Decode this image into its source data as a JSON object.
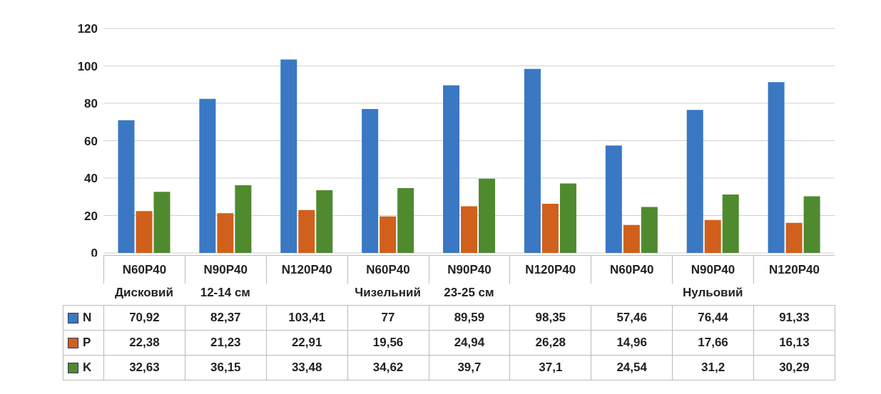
{
  "chart_data": {
    "type": "bar",
    "categories": [
      "N60P40",
      "N90P40",
      "N120P40",
      "N60P40",
      "N90P40",
      "N120P40",
      "N60P40",
      "N90P40",
      "N120P40"
    ],
    "series": [
      {
        "name": "N",
        "color": "#3a78c3",
        "values": [
          70.92,
          82.37,
          103.41,
          77,
          89.59,
          98.35,
          57.46,
          76.44,
          91.33
        ],
        "value_labels": [
          "70,92",
          "82,37",
          "103,41",
          "77",
          "89,59",
          "98,35",
          "57,46",
          "76,44",
          "91,33"
        ]
      },
      {
        "name": "P",
        "color": "#d0601c",
        "values": [
          22.38,
          21.23,
          22.91,
          19.56,
          24.94,
          26.28,
          14.96,
          17.66,
          16.13
        ],
        "value_labels": [
          "22,38",
          "21,23",
          "22,91",
          "19,56",
          "24,94",
          "26,28",
          "14,96",
          "17,66",
          "16,13"
        ]
      },
      {
        "name": "K",
        "color": "#4f8a2f",
        "values": [
          32.63,
          36.15,
          33.48,
          34.62,
          39.7,
          37.1,
          24.54,
          31.2,
          30.29
        ],
        "value_labels": [
          "32,63",
          "36,15",
          "33,48",
          "34,62",
          "39,7",
          "37,1",
          "24,54",
          "31,2",
          "30,29"
        ]
      }
    ],
    "ylim": [
      0,
      120
    ],
    "yticks": [
      0,
      20,
      40,
      60,
      80,
      100,
      120
    ],
    "grid": "y",
    "legend": "bottom",
    "annotations": [
      "Дисковий",
      "12-14 см",
      "Чизельний",
      "23-25 см",
      "Нульовий"
    ]
  }
}
